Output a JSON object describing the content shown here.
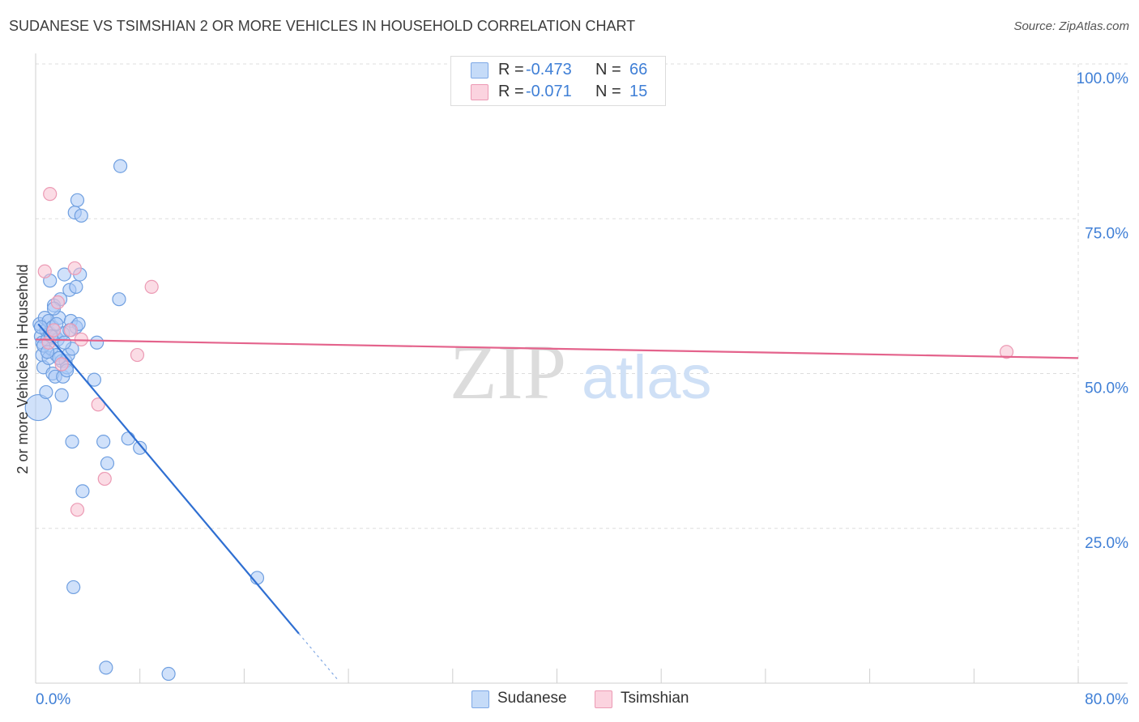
{
  "title": "SUDANESE VS TSIMSHIAN 2 OR MORE VEHICLES IN HOUSEHOLD CORRELATION CHART",
  "source": "Source: ZipAtlas.com",
  "watermark": {
    "zip": "ZIP",
    "atlas": "atlas"
  },
  "legend": {
    "r_label": "R =",
    "n_label": "N =",
    "rows": [
      {
        "r": "-0.473",
        "n": "66",
        "color": "#a9c9f5"
      },
      {
        "r": "-0.071",
        "n": "15",
        "color": "#f7bfd0"
      }
    ]
  },
  "colors": {
    "sudanese_fill": "#a9c9f5",
    "sudanese_stroke": "#6f9fe0",
    "sudanese_line": "#2f6fd2",
    "tsimshian_fill": "#f7bfd0",
    "tsimshian_stroke": "#ec9ab4",
    "tsimshian_line": "#e4638c",
    "axis_label": "#3f7fd6",
    "grid": "#dddddd"
  },
  "chart_data": {
    "type": "scatter",
    "title": "SUDANESE VS TSIMSHIAN 2 OR MORE VEHICLES IN HOUSEHOLD CORRELATION CHART",
    "xlabel": "",
    "ylabel": "2 or more Vehicles in Household",
    "xlim": [
      0,
      80
    ],
    "ylim": [
      0,
      100
    ],
    "x_tick_labels": [
      "0.0%",
      "80.0%"
    ],
    "y_tick_labels": [
      {
        "value": 100,
        "label": "100.0%"
      },
      {
        "value": 75,
        "label": "75.0%"
      },
      {
        "value": 50,
        "label": "50.0%"
      },
      {
        "value": 25,
        "label": "25.0%"
      }
    ],
    "grid": true,
    "legend_position": "bottom",
    "series": [
      {
        "name": "Sudanese",
        "points": [
          [
            0.2,
            44.5
          ],
          [
            0.3,
            58.0
          ],
          [
            0.4,
            56.0
          ],
          [
            0.5,
            55.0
          ],
          [
            0.5,
            53.0
          ],
          [
            0.6,
            51.0
          ],
          [
            0.7,
            59.0
          ],
          [
            0.8,
            57.0
          ],
          [
            0.8,
            47.0
          ],
          [
            0.9,
            55.5
          ],
          [
            1.0,
            58.5
          ],
          [
            1.0,
            52.5
          ],
          [
            1.1,
            56.5
          ],
          [
            1.1,
            65.0
          ],
          [
            1.2,
            54.0
          ],
          [
            1.3,
            50.0
          ],
          [
            1.3,
            57.5
          ],
          [
            1.4,
            61.0
          ],
          [
            1.5,
            49.5
          ],
          [
            1.5,
            56.0
          ],
          [
            1.6,
            53.0
          ],
          [
            1.7,
            55.5
          ],
          [
            1.8,
            59.0
          ],
          [
            1.9,
            62.0
          ],
          [
            2.0,
            52.0
          ],
          [
            2.0,
            46.5
          ],
          [
            2.1,
            56.5
          ],
          [
            2.1,
            49.5
          ],
          [
            2.2,
            66.0
          ],
          [
            2.3,
            52.0
          ],
          [
            2.4,
            51.0
          ],
          [
            2.5,
            53.0
          ],
          [
            2.6,
            63.5
          ],
          [
            2.7,
            58.5
          ],
          [
            2.8,
            54.0
          ],
          [
            2.8,
            39.0
          ],
          [
            2.9,
            15.5
          ],
          [
            3.0,
            76.0
          ],
          [
            3.1,
            64.0
          ],
          [
            3.1,
            57.5
          ],
          [
            3.2,
            78.0
          ],
          [
            3.3,
            58.0
          ],
          [
            3.4,
            66.0
          ],
          [
            3.5,
            75.5
          ],
          [
            3.6,
            31.0
          ],
          [
            4.5,
            49.0
          ],
          [
            4.7,
            55.0
          ],
          [
            5.2,
            39.0
          ],
          [
            5.4,
            2.5
          ],
          [
            5.5,
            35.5
          ],
          [
            6.4,
            62.0
          ],
          [
            6.5,
            83.5
          ],
          [
            7.1,
            39.5
          ],
          [
            8.0,
            38.0
          ],
          [
            10.2,
            1.5
          ],
          [
            17.0,
            17.0
          ],
          [
            0.6,
            54.5
          ],
          [
            1.2,
            56.0
          ],
          [
            1.8,
            52.5
          ],
          [
            2.4,
            50.5
          ],
          [
            0.9,
            53.5
          ],
          [
            1.6,
            58.0
          ],
          [
            2.2,
            55.0
          ],
          [
            0.4,
            57.5
          ],
          [
            1.4,
            60.5
          ],
          [
            2.6,
            57.0
          ]
        ],
        "trend": {
          "x0": 0.2,
          "y0": 58.0,
          "x1": 20.2,
          "y1": 8.0,
          "dash_x1": 23.2
        }
      },
      {
        "name": "Tsimshian",
        "points": [
          [
            0.7,
            66.5
          ],
          [
            1.0,
            55.0
          ],
          [
            1.1,
            79.0
          ],
          [
            1.4,
            57.0
          ],
          [
            1.7,
            61.5
          ],
          [
            2.0,
            51.5
          ],
          [
            2.7,
            57.0
          ],
          [
            3.0,
            67.0
          ],
          [
            3.2,
            28.0
          ],
          [
            3.5,
            55.5
          ],
          [
            4.8,
            45.0
          ],
          [
            5.3,
            33.0
          ],
          [
            7.8,
            53.0
          ],
          [
            8.9,
            64.0
          ],
          [
            74.5,
            53.5
          ]
        ],
        "trend": {
          "x0": 0.0,
          "y0": 55.5,
          "x1": 80.0,
          "y1": 52.5
        }
      }
    ]
  }
}
